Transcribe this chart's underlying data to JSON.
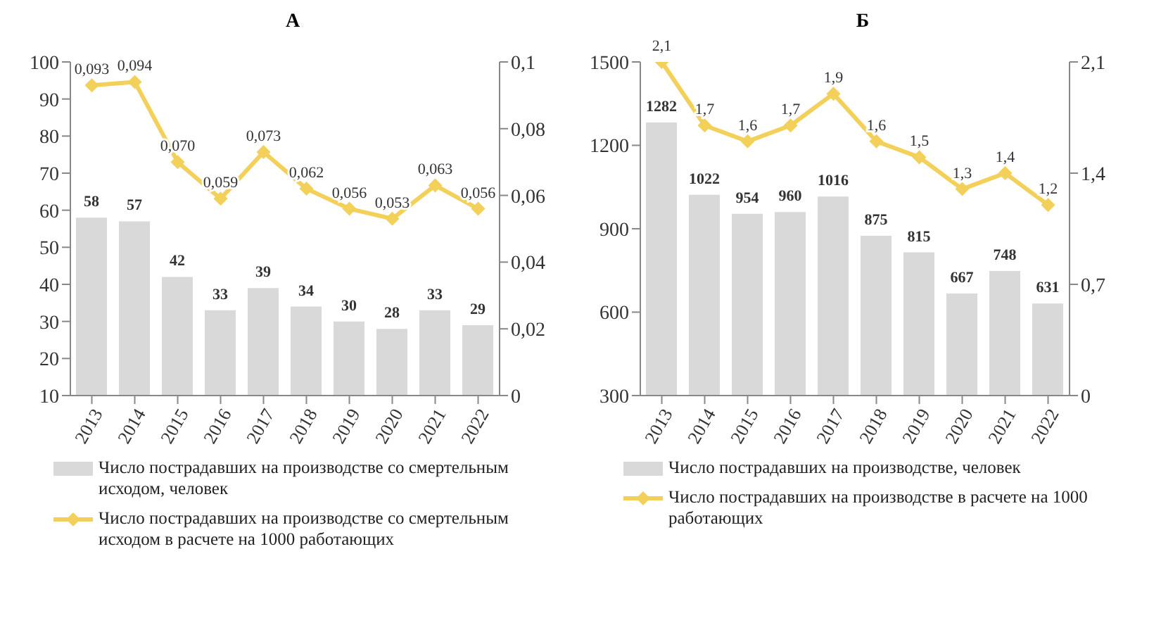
{
  "chart_data": [
    {
      "type": "bar",
      "title": "А",
      "categories": [
        "2013",
        "2014",
        "2015",
        "2016",
        "2017",
        "2018",
        "2019",
        "2020",
        "2021",
        "2022"
      ],
      "series": [
        {
          "name": "Число пострадавших на производстве со смертельным исходом, человек",
          "color": "#d9d9d9",
          "values": [
            58,
            57,
            42,
            33,
            39,
            34,
            30,
            28,
            33,
            29
          ],
          "value_labels": [
            "58",
            "57",
            "42",
            "33",
            "39",
            "34",
            "30",
            "28",
            "33",
            "29"
          ]
        },
        {
          "type": "line",
          "axis": "y2",
          "name": "Число пострадавших на производстве со смертельным исходом в расчете на 1000 работающих",
          "color": "#f2d05a",
          "values": [
            0.093,
            0.094,
            0.07,
            0.059,
            0.073,
            0.062,
            0.056,
            0.053,
            0.063,
            0.056
          ],
          "value_labels": [
            "0,093",
            "0,094",
            "0,070",
            "0,059",
            "0,073",
            "0,062",
            "0,056",
            "0,053",
            "0,063",
            "0,056"
          ]
        }
      ],
      "ylim": [
        10,
        100
      ],
      "yticks": [
        10,
        20,
        30,
        40,
        50,
        60,
        70,
        80,
        90,
        100
      ],
      "y2lim": [
        0,
        0.1
      ],
      "y2ticks": [
        {
          "value": 0,
          "label": "0"
        },
        {
          "value": 0.02,
          "label": "0,02"
        },
        {
          "value": 0.04,
          "label": "0,04"
        },
        {
          "value": 0.06,
          "label": "0,06"
        },
        {
          "value": 0.08,
          "label": "0,08"
        },
        {
          "value": 0.1,
          "label": "0,1"
        }
      ],
      "marker": "diamond",
      "legend": "bottom",
      "grid": false
    },
    {
      "type": "bar",
      "title": "Б",
      "categories": [
        "2013",
        "2014",
        "2015",
        "2016",
        "2017",
        "2018",
        "2019",
        "2020",
        "2021",
        "2022"
      ],
      "series": [
        {
          "name": "Число пострадавших на производстве, человек",
          "color": "#d9d9d9",
          "values": [
            1282,
            1022,
            954,
            960,
            1016,
            875,
            815,
            667,
            748,
            631
          ],
          "value_labels": [
            "1282",
            "1022",
            "954",
            "960",
            "1016",
            "875",
            "815",
            "667",
            "748",
            "631"
          ]
        },
        {
          "type": "line",
          "axis": "y2",
          "name": "Число пострадавших на производстве в расчете на 1000 работающих",
          "color": "#f2d05a",
          "values": [
            2.1,
            1.7,
            1.6,
            1.7,
            1.9,
            1.6,
            1.5,
            1.3,
            1.4,
            1.2
          ],
          "value_labels": [
            "2,1",
            "1,7",
            "1,6",
            "1,7",
            "1,9",
            "1,6",
            "1,5",
            "1,3",
            "1,4",
            "1,2"
          ]
        }
      ],
      "ylim": [
        300,
        1500
      ],
      "yticks": [
        300,
        600,
        900,
        1200,
        1500
      ],
      "y2lim": [
        0,
        2.1
      ],
      "y2ticks": [
        {
          "value": 0,
          "label": "0"
        },
        {
          "value": 0.7,
          "label": "0,7"
        },
        {
          "value": 1.4,
          "label": "1,4"
        },
        {
          "value": 2.1,
          "label": "2,1"
        }
      ],
      "marker": "diamond",
      "legend": "bottom",
      "grid": false
    }
  ]
}
